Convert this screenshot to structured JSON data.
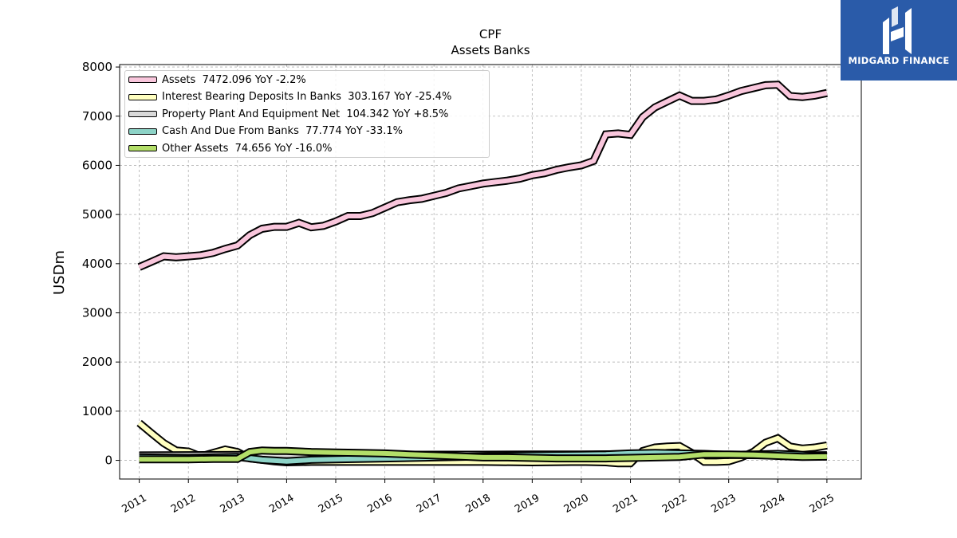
{
  "chart_data": {
    "type": "line",
    "title": "CPF",
    "subtitle": "Assets Banks",
    "ylabel": "USDm",
    "xlabel": "",
    "ylim": [
      -380,
      8050
    ],
    "xlim": [
      2010.6,
      2025.7
    ],
    "yticks": [
      0,
      1000,
      2000,
      3000,
      4000,
      5000,
      6000,
      7000,
      8000
    ],
    "xticks": [
      "2011",
      "2012",
      "2013",
      "2014",
      "2015",
      "2016",
      "2017",
      "2018",
      "2019",
      "2020",
      "2021",
      "2022",
      "2023",
      "2024",
      "2025"
    ],
    "grid": true,
    "legend_position": "top-left",
    "series": [
      {
        "name": "Assets",
        "legend": "Assets  7472.096 YoY -2.2%",
        "color": "#f9c6dc",
        "x": [
          2011.0,
          2011.25,
          2011.5,
          2011.75,
          2012.0,
          2012.25,
          2012.5,
          2012.75,
          2013.0,
          2013.25,
          2013.5,
          2013.75,
          2014.0,
          2014.25,
          2014.5,
          2014.75,
          2015.0,
          2015.25,
          2015.5,
          2015.75,
          2016.0,
          2016.25,
          2016.5,
          2016.75,
          2017.0,
          2017.25,
          2017.5,
          2017.75,
          2018.0,
          2018.25,
          2018.5,
          2018.75,
          2019.0,
          2019.25,
          2019.5,
          2019.75,
          2020.0,
          2020.25,
          2020.5,
          2020.75,
          2021.0,
          2021.25,
          2021.5,
          2021.75,
          2022.0,
          2022.25,
          2022.5,
          2022.75,
          2023.0,
          2023.25,
          2023.5,
          2023.75,
          2024.0,
          2024.25,
          2024.5,
          2024.75,
          2025.0
        ],
        "values": [
          3930,
          4040,
          4150,
          4130,
          4150,
          4170,
          4220,
          4300,
          4370,
          4580,
          4710,
          4750,
          4750,
          4830,
          4740,
          4770,
          4860,
          4970,
          4970,
          5030,
          5140,
          5250,
          5290,
          5320,
          5380,
          5440,
          5530,
          5580,
          5630,
          5660,
          5690,
          5730,
          5800,
          5840,
          5910,
          5960,
          6000,
          6090,
          6630,
          6650,
          6620,
          6980,
          7180,
          7300,
          7420,
          7310,
          7310,
          7340,
          7420,
          7510,
          7570,
          7630,
          7640,
          7410,
          7390,
          7420,
          7472
        ]
      },
      {
        "name": "Interest Bearing Deposits In Banks",
        "legend": "Interest Bearing Deposits In Banks  303.167 YoY -25.4%",
        "color": "#ffffc0",
        "x": [
          2011.0,
          2011.25,
          2011.5,
          2011.75,
          2012.0,
          2012.25,
          2012.5,
          2012.75,
          2013.0,
          2013.25,
          2013.5,
          2013.75,
          2014.0,
          2014.5,
          2015.0,
          2016.0,
          2017.0,
          2018.0,
          2019.0,
          2020.0,
          2020.5,
          2020.75,
          2021.0,
          2021.25,
          2021.5,
          2021.75,
          2022.0,
          2022.25,
          2022.5,
          2022.75,
          2023.0,
          2023.25,
          2023.5,
          2023.75,
          2024.0,
          2024.25,
          2024.5,
          2024.75,
          2025.0
        ],
        "values": [
          760,
          550,
          350,
          200,
          180,
          80,
          150,
          220,
          170,
          40,
          10,
          -20,
          -40,
          -30,
          -30,
          -30,
          -30,
          -30,
          -40,
          -30,
          -40,
          -60,
          -60,
          190,
          260,
          280,
          290,
          150,
          -30,
          -30,
          -20,
          60,
          170,
          360,
          450,
          280,
          240,
          260,
          303
        ]
      },
      {
        "name": "Property Plant And Equipment Net",
        "legend": "Property Plant And Equipment Net  104.342 YoY +8.5%",
        "color": "#d9d9d9",
        "x": [
          2011.0,
          2012.0,
          2013.0,
          2014.0,
          2015.0,
          2016.0,
          2017.0,
          2018.0,
          2019.0,
          2020.0,
          2021.0,
          2022.0,
          2023.0,
          2024.0,
          2025.0
        ],
        "values": [
          100,
          105,
          110,
          110,
          110,
          110,
          115,
          115,
          120,
          120,
          125,
          120,
          110,
          100,
          104
        ]
      },
      {
        "name": "Cash And Due From Banks",
        "legend": "Cash And Due From Banks  77.774 YoY -33.1%",
        "color": "#8dd3c7",
        "x": [
          2011.0,
          2012.0,
          2012.5,
          2013.0,
          2013.5,
          2014.0,
          2014.5,
          2015.0,
          2016.0,
          2017.0,
          2018.0,
          2019.0,
          2020.0,
          2020.5,
          2021.0,
          2021.5,
          2022.0,
          2022.5,
          2023.0,
          2023.5,
          2024.0,
          2024.5,
          2025.0
        ],
        "values": [
          60,
          50,
          60,
          70,
          10,
          -20,
          10,
          20,
          40,
          60,
          80,
          100,
          110,
          120,
          140,
          150,
          140,
          130,
          110,
          120,
          130,
          110,
          78
        ]
      },
      {
        "name": "Other Assets",
        "legend": "Other Assets  74.656 YoY -16.0%",
        "color": "#b3de69",
        "x": [
          2011.0,
          2011.5,
          2012.0,
          2012.5,
          2013.0,
          2013.25,
          2013.5,
          2013.75,
          2014.0,
          2014.5,
          2015.0,
          2015.5,
          2016.0,
          2016.5,
          2017.0,
          2017.5,
          2018.0,
          2018.5,
          2019.0,
          2019.5,
          2020.0,
          2020.5,
          2021.0,
          2021.5,
          2022.0,
          2022.5,
          2023.0,
          2023.5,
          2024.0,
          2024.5,
          2025.0
        ],
        "values": [
          20,
          20,
          20,
          30,
          30,
          170,
          200,
          190,
          190,
          170,
          160,
          150,
          140,
          120,
          100,
          80,
          60,
          60,
          50,
          40,
          40,
          40,
          50,
          60,
          70,
          120,
          120,
          110,
          90,
          70,
          75
        ]
      }
    ]
  },
  "brand": {
    "name": "MIDGARD FINANCE",
    "color": "#2a5ba9"
  }
}
